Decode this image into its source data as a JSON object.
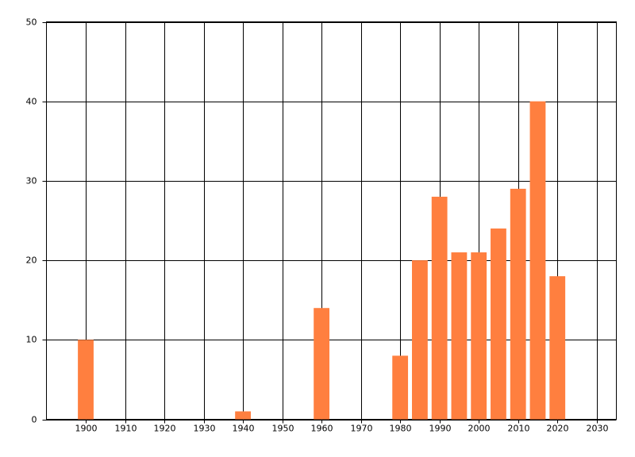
{
  "chart_data": {
    "type": "bar",
    "x": [
      1900,
      1940,
      1960,
      1980,
      1985,
      1990,
      1995,
      2000,
      2005,
      2010,
      2015,
      2020
    ],
    "values": [
      10,
      1,
      14,
      8,
      20,
      28,
      21,
      21,
      24,
      29,
      40,
      18
    ],
    "color": "#ff7f3f",
    "xlim": [
      1890,
      2035
    ],
    "xticks": [
      1900,
      1910,
      1920,
      1930,
      1940,
      1950,
      1960,
      1970,
      1980,
      1990,
      2000,
      2010,
      2020,
      2030
    ],
    "ylim": [
      0,
      50
    ],
    "yticks": [
      0,
      10,
      20,
      30,
      40,
      50
    ],
    "grid": true
  }
}
